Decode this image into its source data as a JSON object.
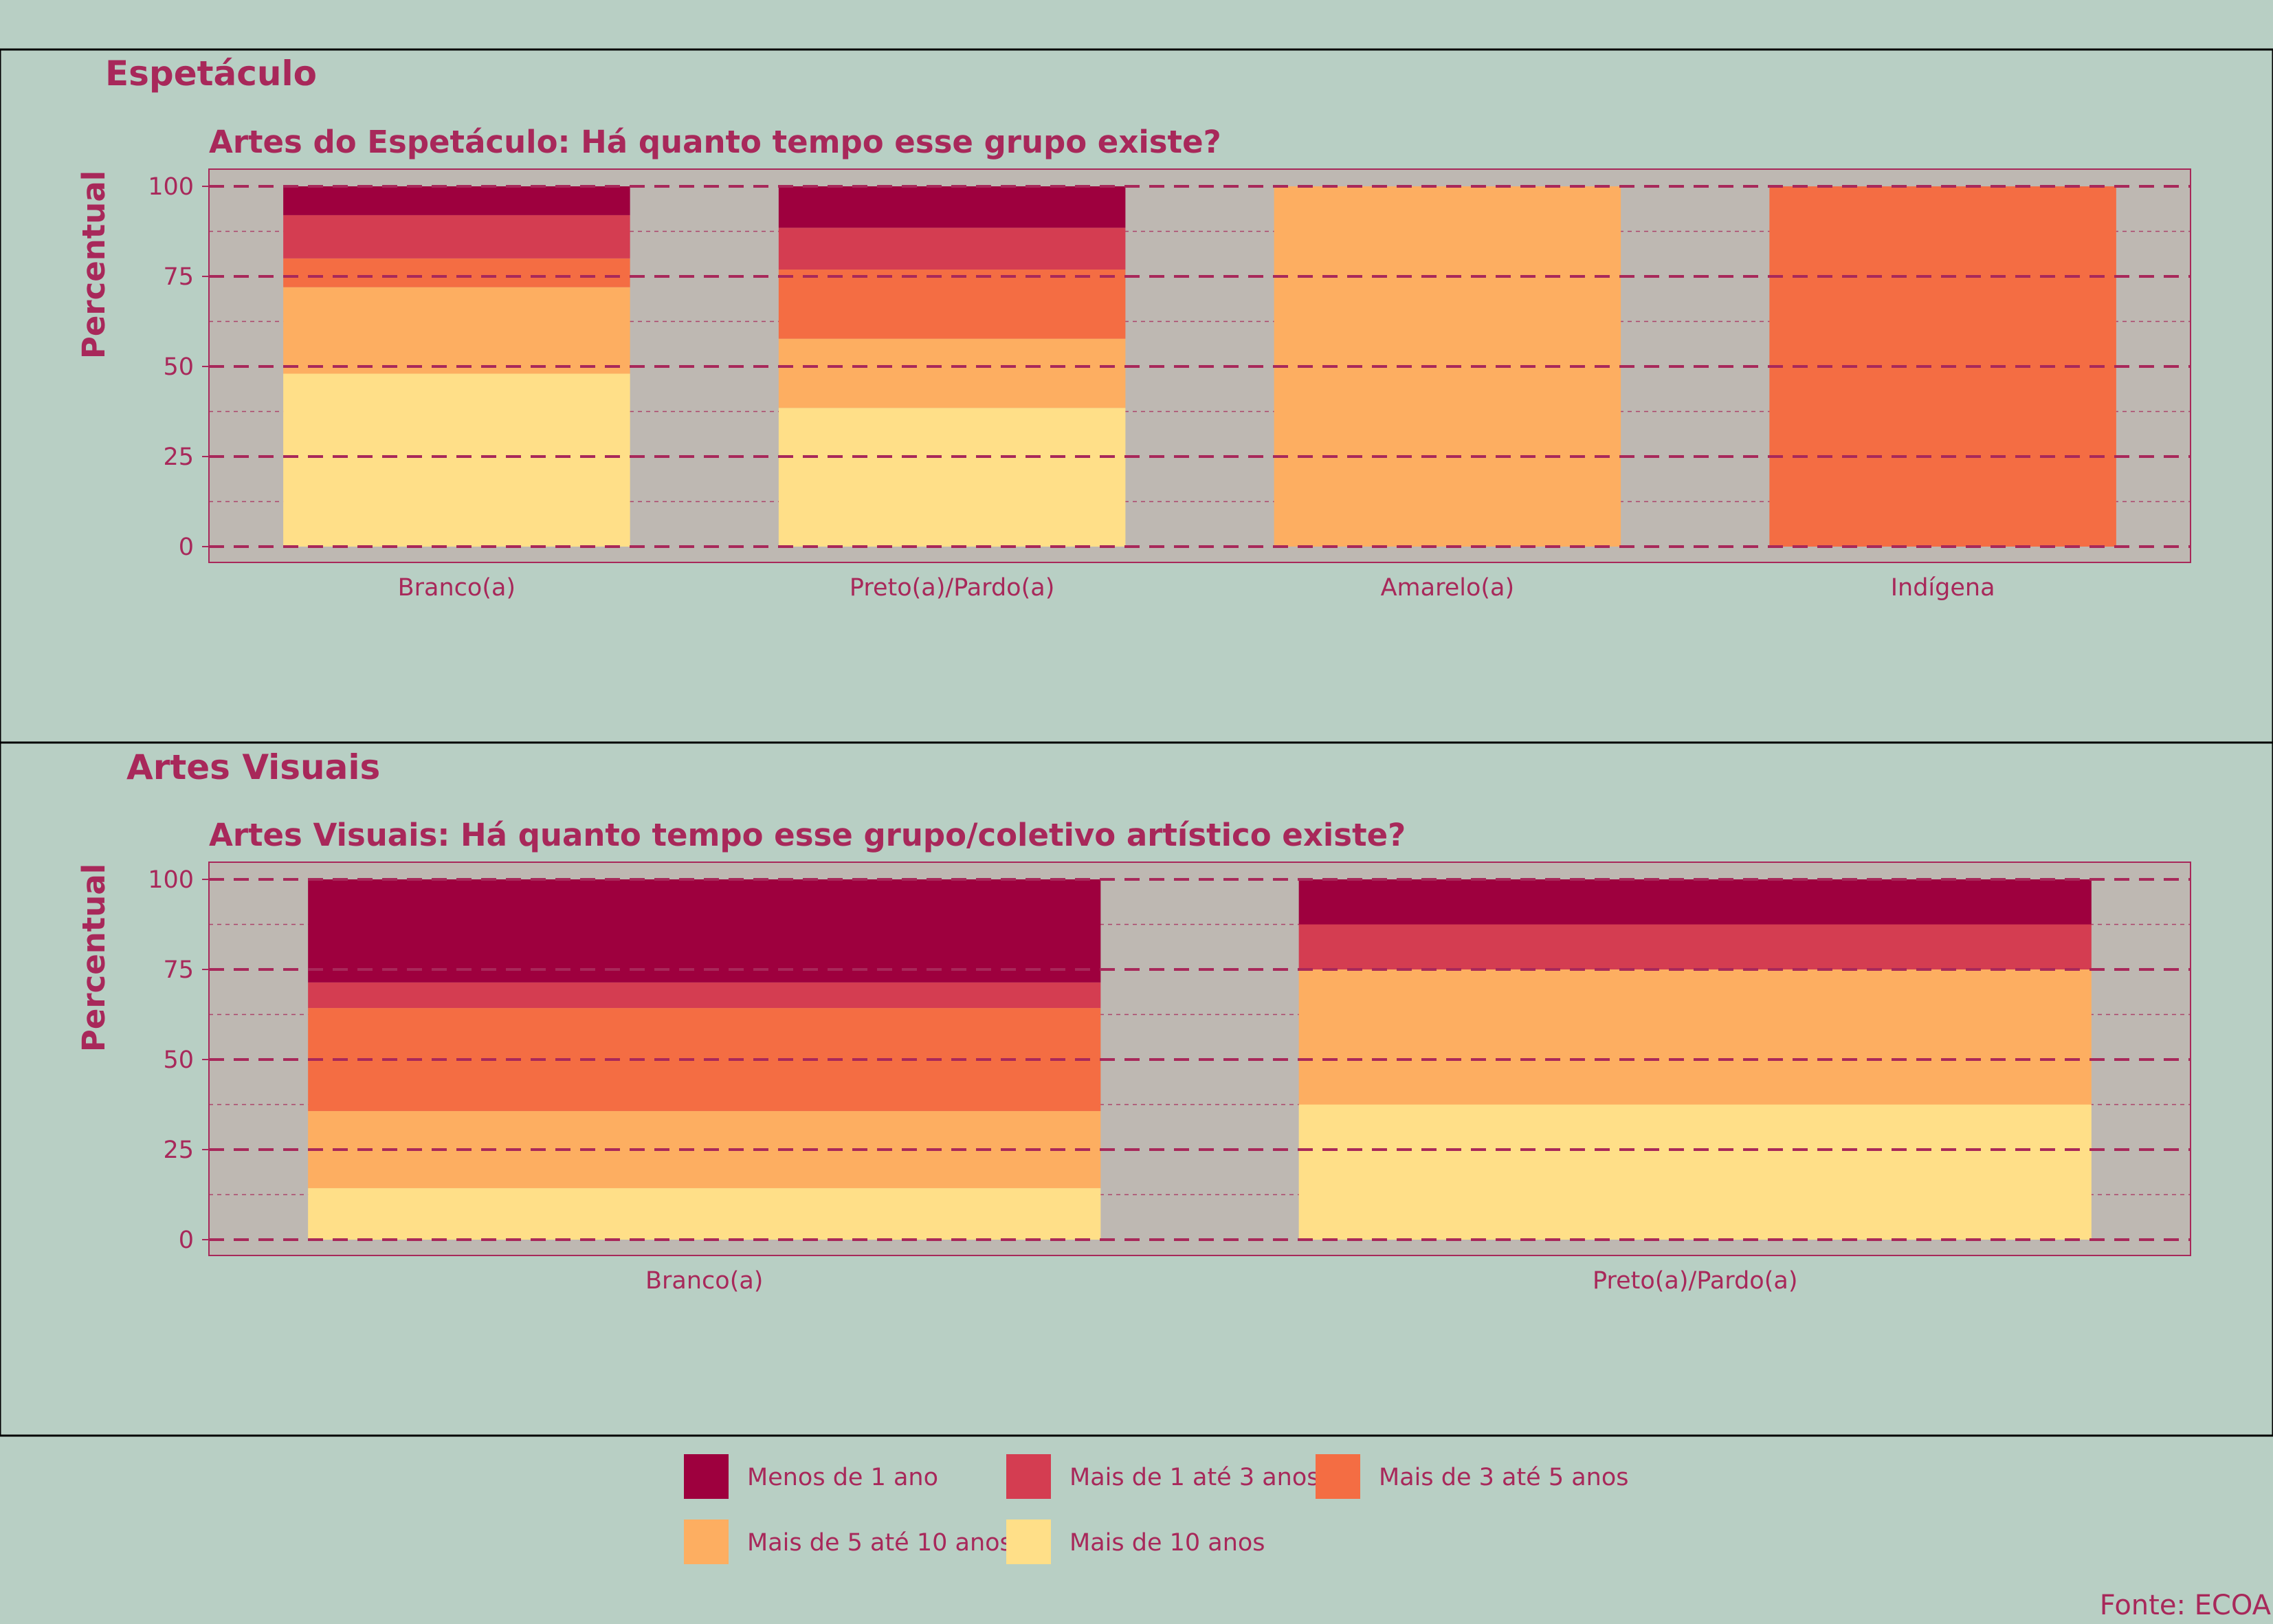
{
  "colors": {
    "background": "#b8cfc4",
    "plot_background": "#beb8b2",
    "text": "#a8285a",
    "grid": "#a8285a"
  },
  "legend": {
    "items": [
      {
        "label": "Menos de 1 ano",
        "color": "#9e003e"
      },
      {
        "label": "Mais de 1 até 3 anos",
        "color": "#d43d51"
      },
      {
        "label": "Mais de 3 até 5 anos",
        "color": "#f46d43"
      },
      {
        "label": "Mais de 5 até 10 anos",
        "color": "#fdae61"
      },
      {
        "label": "Mais de 10 anos",
        "color": "#ffdf88"
      }
    ]
  },
  "source": "Fonte: ECOA",
  "chart_data": [
    {
      "panel_title": "Espetáculo",
      "type": "bar",
      "stacked": true,
      "title": "Artes do Espetáculo: Há quanto tempo esse grupo existe?",
      "xlabel": "",
      "ylabel": "Percentual",
      "ylim": [
        0,
        100
      ],
      "yticks": [
        "0",
        "25",
        "50",
        "75",
        "100"
      ],
      "grid": true,
      "categories": [
        "Branco(a)",
        "Preto(a)/Pardo(a)",
        "Amarelo(a)",
        "Indígena"
      ],
      "series": [
        {
          "name": "Mais de 10 anos",
          "values": [
            48,
            38.5,
            0,
            0
          ]
        },
        {
          "name": "Mais de 5 até 10 anos",
          "values": [
            24,
            19.2,
            100,
            0
          ]
        },
        {
          "name": "Mais de 3 até 5 anos",
          "values": [
            8,
            19.2,
            0,
            100
          ]
        },
        {
          "name": "Mais de 1 até 3 anos",
          "values": [
            12,
            11.6,
            0,
            0
          ]
        },
        {
          "name": "Menos de 1 ano",
          "values": [
            8,
            11.5,
            0,
            0
          ]
        }
      ]
    },
    {
      "panel_title": "Artes Visuais",
      "type": "bar",
      "stacked": true,
      "title": "Artes Visuais: Há quanto tempo esse grupo/coletivo artístico existe?",
      "xlabel": "",
      "ylabel": "Percentual",
      "ylim": [
        0,
        100
      ],
      "yticks": [
        "0",
        "25",
        "50",
        "75",
        "100"
      ],
      "grid": true,
      "categories": [
        "Branco(a)",
        "Preto(a)/Pardo(a)"
      ],
      "series": [
        {
          "name": "Mais de 10 anos",
          "values": [
            14.3,
            37.5
          ]
        },
        {
          "name": "Mais de 5 até 10 anos",
          "values": [
            21.4,
            37.5
          ]
        },
        {
          "name": "Mais de 3 até 5 anos",
          "values": [
            28.6,
            0
          ]
        },
        {
          "name": "Mais de 1 até 3 anos",
          "values": [
            7.1,
            12.5
          ]
        },
        {
          "name": "Menos de 1 ano",
          "values": [
            28.6,
            12.5
          ]
        }
      ]
    }
  ]
}
